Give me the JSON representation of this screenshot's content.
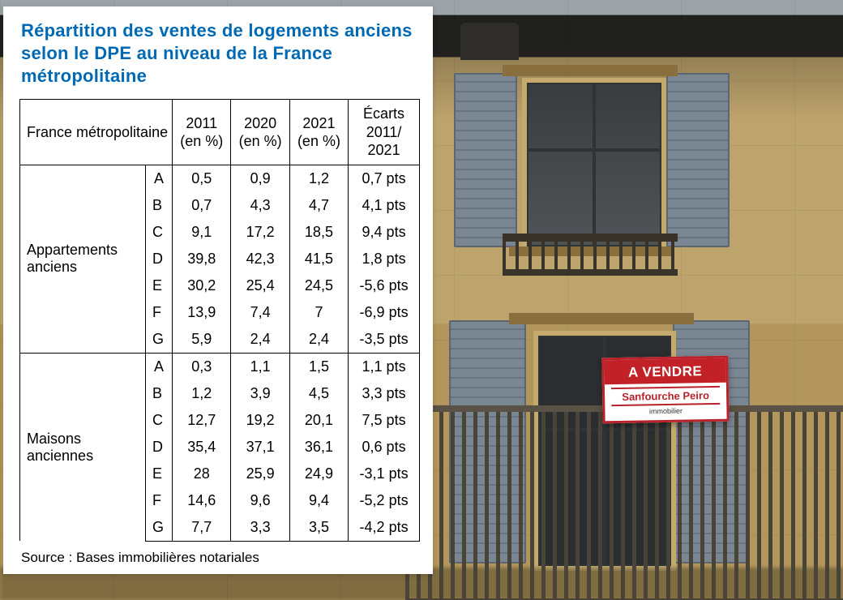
{
  "title_line1": "Répartition des ventes de logements anciens",
  "title_line2": "selon le DPE au niveau de la France métropolitaine",
  "source_label": "Source : Bases immobilières notariales",
  "table": {
    "header": {
      "region": "France métropolitaine",
      "col_2011": "2011 (en %)",
      "col_2020": "2020 (en %)",
      "col_2021": "2021 (en %)",
      "col_ecarts": "Écarts 2011/ 2021"
    },
    "sections": [
      {
        "label": "Appartements anciens",
        "rows": [
          {
            "g": "A",
            "y2011": "0,5",
            "y2020": "0,9",
            "y2021": "1,2",
            "d": "0,7 pts"
          },
          {
            "g": "B",
            "y2011": "0,7",
            "y2020": "4,3",
            "y2021": "4,7",
            "d": "4,1 pts"
          },
          {
            "g": "C",
            "y2011": "9,1",
            "y2020": "17,2",
            "y2021": "18,5",
            "d": "9,4 pts"
          },
          {
            "g": "D",
            "y2011": "39,8",
            "y2020": "42,3",
            "y2021": "41,5",
            "d": "1,8 pts"
          },
          {
            "g": "E",
            "y2011": "30,2",
            "y2020": "25,4",
            "y2021": "24,5",
            "d": "-5,6 pts"
          },
          {
            "g": "F",
            "y2011": "13,9",
            "y2020": "7,4",
            "y2021": "7",
            "d": "-6,9 pts"
          },
          {
            "g": "G",
            "y2011": "5,9",
            "y2020": "2,4",
            "y2021": "2,4",
            "d": "-3,5 pts"
          }
        ]
      },
      {
        "label": "Maisons anciennes",
        "rows": [
          {
            "g": "A",
            "y2011": "0,3",
            "y2020": "1,1",
            "y2021": "1,5",
            "d": "1,1 pts"
          },
          {
            "g": "B",
            "y2011": "1,2",
            "y2020": "3,9",
            "y2021": "4,5",
            "d": "3,3 pts"
          },
          {
            "g": "C",
            "y2011": "12,7",
            "y2020": "19,2",
            "y2021": "20,1",
            "d": "7,5 pts"
          },
          {
            "g": "D",
            "y2011": "35,4",
            "y2020": "37,1",
            "y2021": "36,1",
            "d": "0,6 pts"
          },
          {
            "g": "E",
            "y2011": "28",
            "y2020": "25,9",
            "y2021": "24,9",
            "d": "-3,1 pts"
          },
          {
            "g": "F",
            "y2011": "14,6",
            "y2020": "9,6",
            "y2021": "9,4",
            "d": "-5,2 pts"
          },
          {
            "g": "G",
            "y2011": "7,7",
            "y2020": "3,3",
            "y2021": "3,5",
            "d": "-4,2 pts"
          }
        ]
      }
    ]
  },
  "sign": {
    "headline": "A VENDRE",
    "agency": "Sanfourche Peiro",
    "sub": "immobilier"
  },
  "style": {
    "title_color": "#0069b4",
    "title_fontsize": 22,
    "cell_fontsize": 18,
    "border_color": "#000000",
    "card_bg": "#ffffff",
    "bg_wall_color": "#bda36c",
    "shutter_color": "#6e7a85",
    "sign_red": "#c22128"
  }
}
